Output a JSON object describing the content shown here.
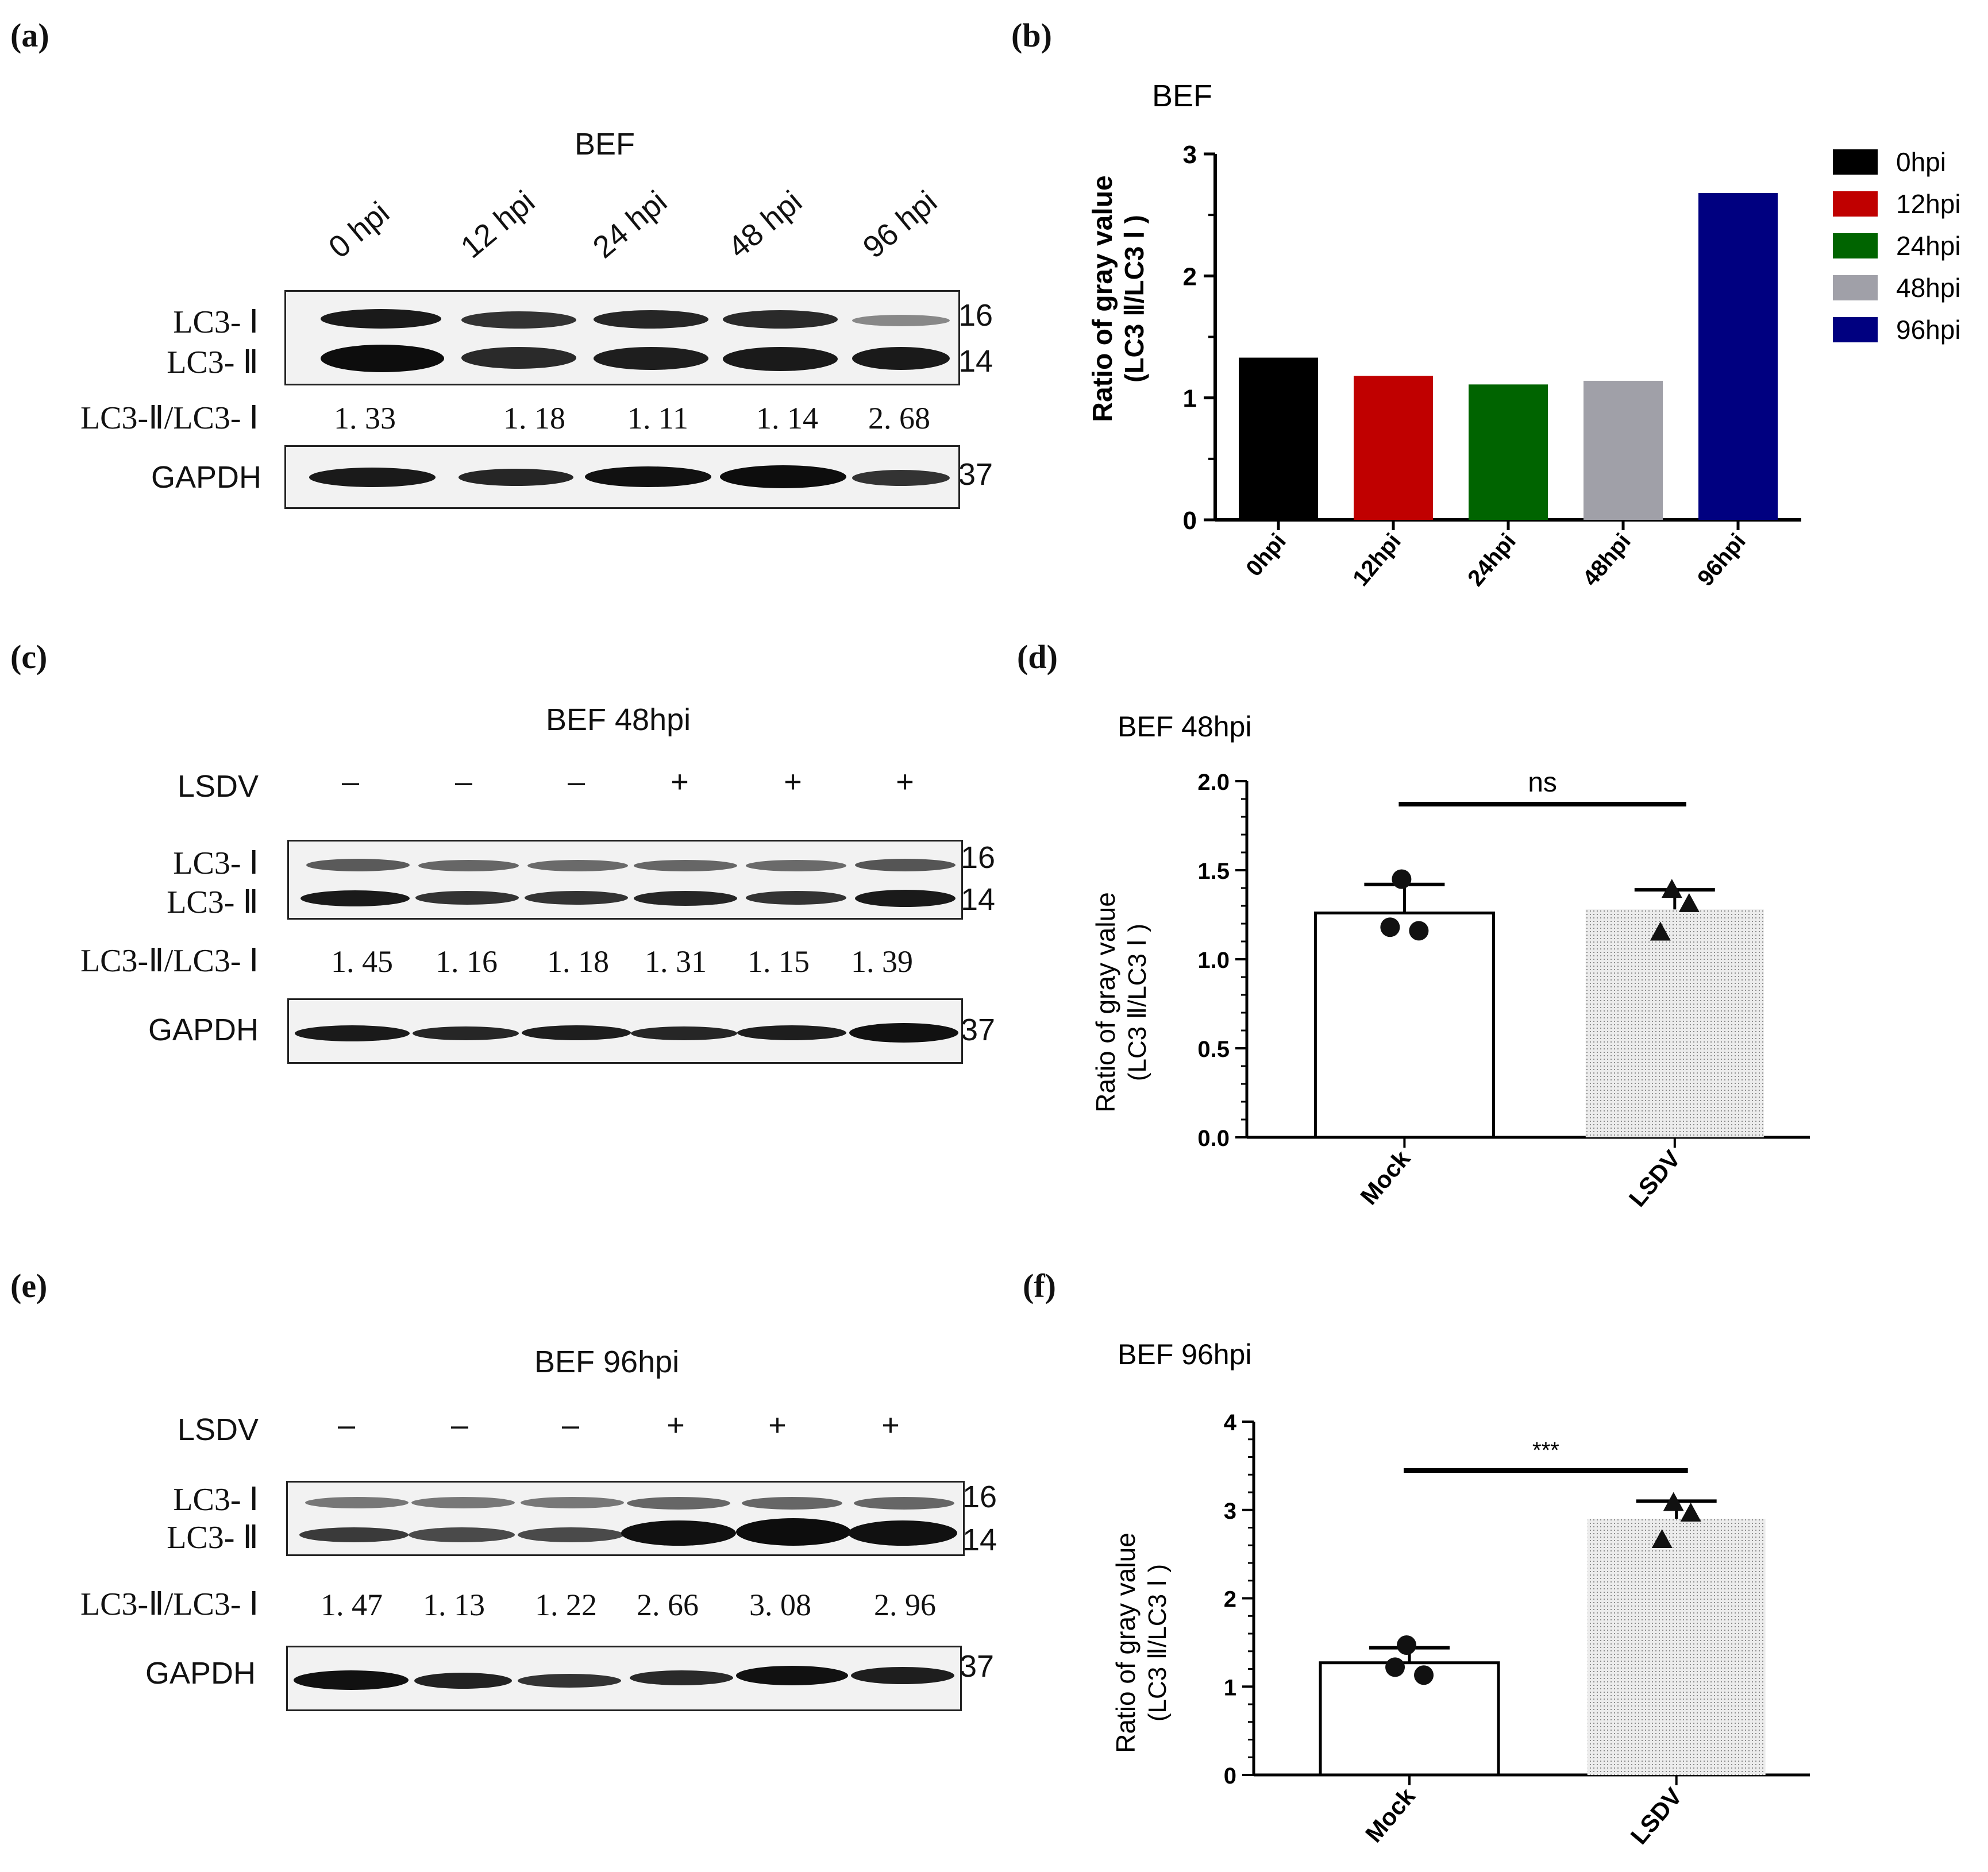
{
  "panels": {
    "a": {
      "letter": "(a)",
      "title": "BEF",
      "lanes": [
        "0 hpi",
        "12 hpi",
        "24 hpi",
        "48 hpi",
        "96 hpi"
      ],
      "lc3_i": "LC3- Ⅰ",
      "lc3_ii": "LC3- Ⅱ",
      "ratio_label": "LC3-Ⅱ/LC3- Ⅰ",
      "ratios": [
        "1. 33",
        "1. 18",
        "1. 11",
        "1. 14",
        "2. 68"
      ],
      "gapdh": "GAPDH",
      "mw": [
        "16",
        "14",
        "37"
      ]
    },
    "b": {
      "letter": "(b)",
      "title": "BEF"
    },
    "c": {
      "letter": "(c)",
      "title": "BEF 48hpi",
      "treatment_label": "LSDV",
      "signs": [
        "–",
        "–",
        "–",
        "+",
        "+",
        "+"
      ],
      "lc3_i": "LC3- Ⅰ",
      "lc3_ii": "LC3- Ⅱ",
      "ratio_label": "LC3-Ⅱ/LC3- Ⅰ",
      "ratios": [
        "1. 45",
        "1. 16",
        "1. 18",
        "1. 31",
        "1. 15",
        "1. 39"
      ],
      "gapdh": "GAPDH",
      "mw": [
        "16",
        "14",
        "37"
      ]
    },
    "d": {
      "letter": "(d)",
      "title": "BEF 48hpi"
    },
    "e": {
      "letter": "(e)",
      "title": "BEF 96hpi",
      "treatment_label": "LSDV",
      "signs": [
        "–",
        "–",
        "–",
        "+",
        "+",
        "+"
      ],
      "lc3_i": "LC3- Ⅰ",
      "lc3_ii": "LC3- Ⅱ",
      "ratio_label": "LC3-Ⅱ/LC3- Ⅰ",
      "ratios": [
        "1. 47",
        "1. 13",
        "1. 22",
        "2. 66",
        "3. 08",
        "2. 96"
      ],
      "gapdh": "GAPDH",
      "mw": [
        "16",
        "14",
        "37"
      ]
    },
    "f": {
      "letter": "(f)",
      "title": "BEF 96hpi"
    }
  },
  "chart_data": [
    {
      "id": "b",
      "type": "bar",
      "title": "BEF",
      "categories": [
        "0hpi",
        "12hpi",
        "24hpi",
        "48hpi",
        "96hpi"
      ],
      "values": [
        1.33,
        1.18,
        1.11,
        1.14,
        2.68
      ],
      "colors": [
        "#000000",
        "#c00000",
        "#006400",
        "#a0a0a8",
        "#000080"
      ],
      "ylabel": [
        "Ratio of gray value",
        "(LC3 Ⅱ/LC3 Ⅰ )"
      ],
      "ylim": [
        0,
        3
      ],
      "yticks": [
        "0",
        "1",
        "2",
        "3"
      ],
      "legend": [
        "0hpi",
        "12hpi",
        "24hpi",
        "48hpi",
        "96hpi"
      ],
      "legend_position": "right"
    },
    {
      "id": "d",
      "type": "bar",
      "title": "BEF 48hpi",
      "categories": [
        "Mock",
        "LSDV"
      ],
      "means": [
        1.26,
        1.28
      ],
      "errors": [
        0.16,
        0.11
      ],
      "points": [
        [
          1.45,
          1.16,
          1.18
        ],
        [
          1.39,
          1.31,
          1.15
        ]
      ],
      "ylabel": [
        "Ratio of gray value",
        "(LC3 Ⅱ/LC3 Ⅰ )"
      ],
      "ylim": [
        0,
        2.0
      ],
      "yticks": [
        "0.0",
        "0.5",
        "1.0",
        "1.5",
        "2.0"
      ],
      "significance": "ns"
    },
    {
      "id": "f",
      "type": "bar",
      "title": "BEF 96hpi",
      "categories": [
        "Mock",
        "LSDV"
      ],
      "means": [
        1.27,
        2.9
      ],
      "errors": [
        0.17,
        0.2
      ],
      "points": [
        [
          1.47,
          1.13,
          1.22
        ],
        [
          3.08,
          2.96,
          2.66
        ]
      ],
      "ylabel": [
        "Ratio of gray value",
        "(LC3 Ⅱ/LC3 Ⅰ )"
      ],
      "ylim": [
        0,
        4
      ],
      "yticks": [
        "0",
        "1",
        "2",
        "3",
        "4"
      ],
      "significance": "***"
    }
  ]
}
